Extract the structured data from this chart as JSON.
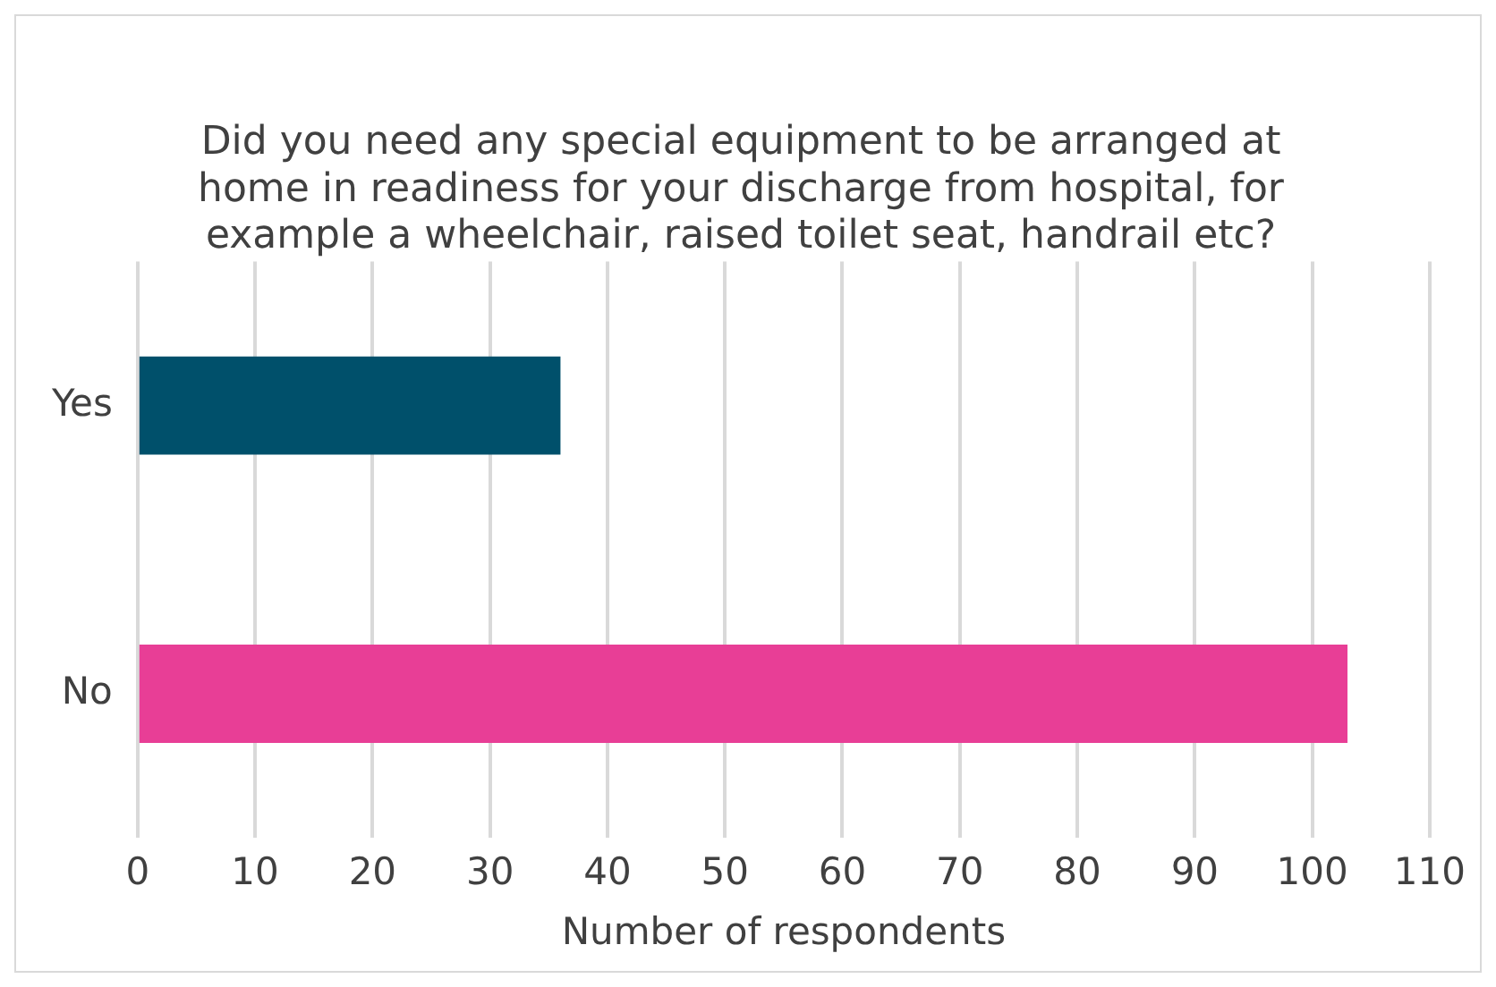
{
  "chart_data": {
    "type": "bar",
    "orientation": "horizontal",
    "title": "Did you need any special equipment to be arranged at home in readiness for your discharge from hospital, for example a wheelchair, raised toilet seat, handrail etc?",
    "xlabel": "Number of respondents",
    "categories": [
      "Yes",
      "No"
    ],
    "values": [
      36,
      103
    ],
    "colors": [
      "#00506b",
      "#e83e96"
    ],
    "xlim": [
      0,
      110
    ],
    "xticks": [
      0,
      10,
      20,
      30,
      40,
      50,
      60,
      70,
      80,
      90,
      100,
      110
    ],
    "grid": "x",
    "legend": false
  }
}
